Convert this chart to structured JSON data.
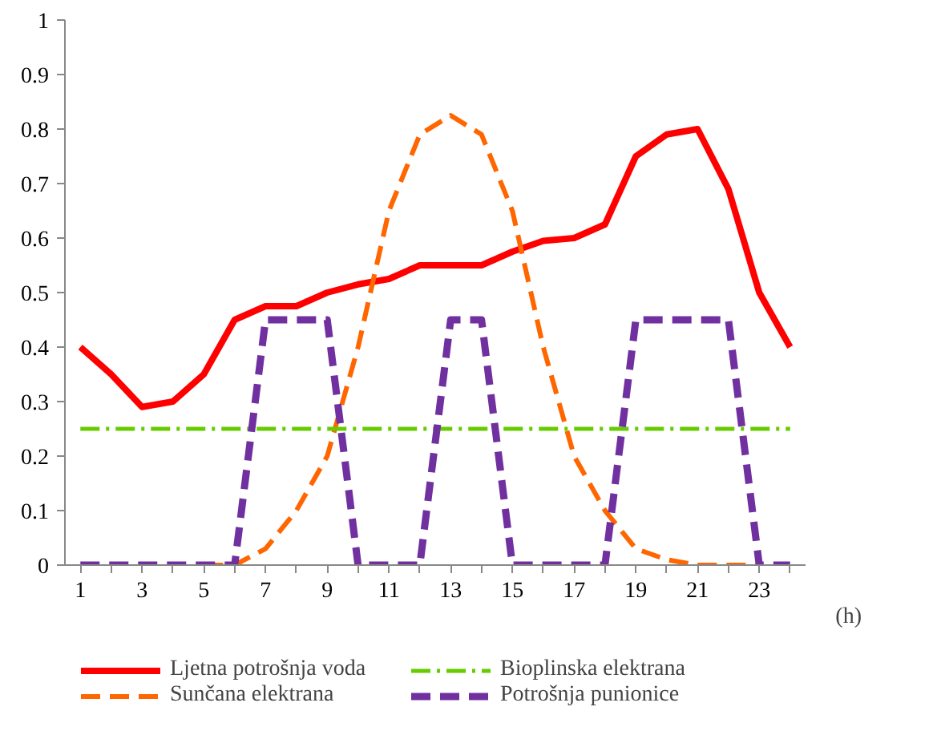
{
  "chart_data": {
    "type": "line",
    "xlabel": "(h)",
    "x": [
      1,
      2,
      3,
      4,
      5,
      6,
      7,
      8,
      9,
      10,
      11,
      12,
      13,
      14,
      15,
      16,
      17,
      18,
      19,
      20,
      21,
      22,
      23,
      24
    ],
    "series": [
      {
        "name": "Ljetna potrošnja voda",
        "color": "#ff0000",
        "line_style": "solid",
        "values": [
          0.4,
          0.35,
          0.29,
          0.3,
          0.35,
          0.45,
          0.475,
          0.475,
          0.5,
          0.515,
          0.525,
          0.55,
          0.55,
          0.55,
          0.575,
          0.595,
          0.6,
          0.625,
          0.75,
          0.79,
          0.8,
          0.69,
          0.5,
          0.4
        ]
      },
      {
        "name": "Sunčana elektrana",
        "color": "#ff6600",
        "line_style": "dashed",
        "values": [
          null,
          null,
          null,
          null,
          0,
          0,
          0.03,
          0.1,
          0.2,
          0.4,
          0.65,
          0.79,
          0.825,
          0.79,
          0.65,
          0.4,
          0.2,
          0.1,
          0.03,
          0.01,
          0,
          0,
          0,
          null
        ]
      },
      {
        "name": "Bioplinska elektrana",
        "color": "#66cc00",
        "line_style": "dashdot",
        "values": [
          0.25,
          0.25,
          0.25,
          0.25,
          0.25,
          0.25,
          0.25,
          0.25,
          0.25,
          0.25,
          0.25,
          0.25,
          0.25,
          0.25,
          0.25,
          0.25,
          0.25,
          0.25,
          0.25,
          0.25,
          0.25,
          0.25,
          0.25,
          0.25
        ]
      },
      {
        "name": "Potrošnja punionice",
        "color": "#7030a0",
        "line_style": "dashed",
        "values": [
          0,
          0,
          0,
          0,
          0,
          0,
          0.45,
          0.45,
          0.45,
          0,
          0,
          0,
          0.45,
          0.45,
          0,
          0,
          0,
          0,
          0.45,
          0.45,
          0.45,
          0.45,
          0,
          0
        ]
      }
    ],
    "xlim": [
      0.5,
      24.5
    ],
    "xticks": [
      1,
      {
        "value": 2,
        "label": null
      },
      3,
      {
        "value": 4,
        "label": null
      },
      5,
      {
        "value": 6,
        "label": null
      },
      7,
      {
        "value": 8,
        "label": null
      },
      9,
      {
        "value": 10,
        "label": null
      },
      11,
      {
        "value": 12,
        "label": null
      },
      13,
      {
        "value": 14,
        "label": null
      },
      15,
      {
        "value": 16,
        "label": null
      },
      17,
      {
        "value": 18,
        "label": null
      },
      19,
      {
        "value": 20,
        "label": null
      },
      21,
      {
        "value": 22,
        "label": null
      },
      23,
      {
        "value": 24,
        "label": null
      }
    ],
    "ylim": [
      0,
      1
    ],
    "yticks": [
      0,
      0.1,
      0.2,
      0.3,
      0.4,
      0.5,
      0.6,
      0.7,
      0.8,
      0.9,
      1
    ],
    "grid": false,
    "legend": "bottom",
    "marker": "none"
  }
}
